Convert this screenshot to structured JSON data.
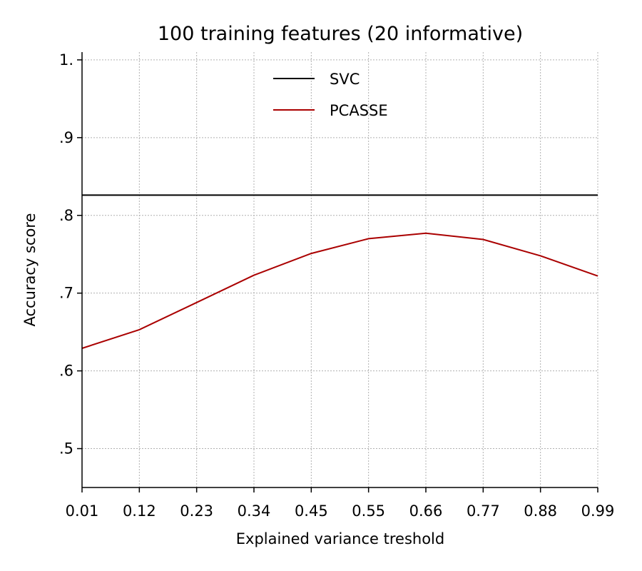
{
  "chart_data": {
    "type": "line",
    "title": "100 training features (20 informative)",
    "xlabel": "Explained variance treshold",
    "ylabel": "Accuracy score",
    "x": [
      0.01,
      0.12,
      0.23,
      0.34,
      0.45,
      0.55,
      0.66,
      0.77,
      0.88,
      0.99
    ],
    "x_tick_labels": [
      "0.01",
      "0.12",
      "0.23",
      "0.34",
      "0.45",
      "0.55",
      "0.66",
      "0.77",
      "0.88",
      "0.99"
    ],
    "y_ticks": [
      0.5,
      0.6,
      0.7,
      0.8,
      0.9,
      1.0
    ],
    "y_tick_labels": [
      ".5",
      ".6",
      ".7",
      ".8",
      ".9",
      "1."
    ],
    "ylim": [
      0.45,
      1.01
    ],
    "grid": true,
    "legend_position": "upper-center",
    "series": [
      {
        "name": "SVC",
        "color": "#000000",
        "values": [
          0.826,
          0.826,
          0.826,
          0.826,
          0.826,
          0.826,
          0.826,
          0.826,
          0.826,
          0.826
        ]
      },
      {
        "name": "PCASSE",
        "color": "#aa0000",
        "values": [
          0.629,
          0.653,
          0.688,
          0.723,
          0.751,
          0.77,
          0.777,
          0.769,
          0.748,
          0.722
        ]
      }
    ]
  }
}
